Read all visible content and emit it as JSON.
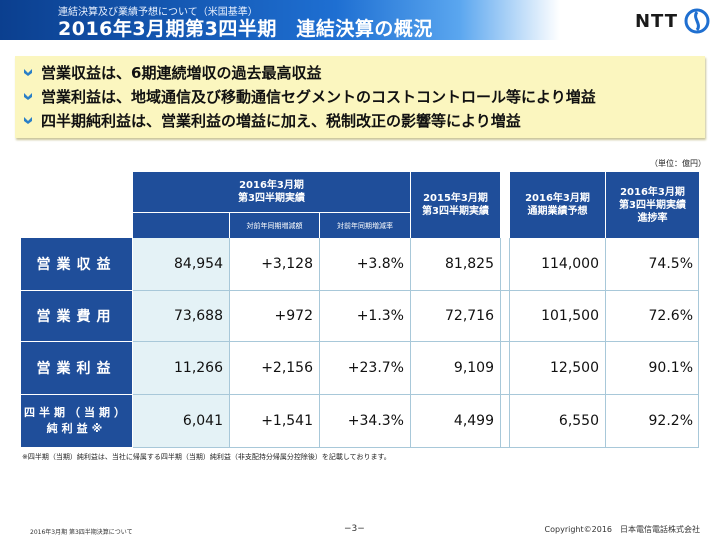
{
  "header": {
    "subtitle": "連結決算及び業績予想について（米国基準）",
    "title": "2016年3月期第3四半期　連結決算の概況",
    "logo_text": "NTT"
  },
  "summary": {
    "items": [
      "営業収益は、6期連続増収の過去最高収益",
      "営業利益は、地域通信及び移動通信セグメントのコストコントロール等により増益",
      "四半期純利益は、営業利益の増益に加え、税制改正の影響等により増益"
    ]
  },
  "unit": "（単位：億円）",
  "table": {
    "group_header": "2016年3月期\n第3四半期実績",
    "sub_headers": [
      "対前年同期増減額",
      "対前年同期増減率"
    ],
    "col_prev": "2015年3月期\n第3四半期実績",
    "col_forecast": "2016年3月期\n通期業績予想",
    "col_progress": "2016年3月期\n第3四半期実績\n進捗率",
    "rows": [
      {
        "label": "営業収益",
        "actual": "84,954",
        "diff": "+3,128",
        "rate": "+3.8%",
        "prev": "81,825",
        "forecast": "114,000",
        "progress": "74.5%"
      },
      {
        "label": "営業費用",
        "actual": "73,688",
        "diff": "+972",
        "rate": "+1.3%",
        "prev": "72,716",
        "forecast": "101,500",
        "progress": "72.6%"
      },
      {
        "label": "営業利益",
        "actual": "11,266",
        "diff": "+2,156",
        "rate": "+23.7%",
        "prev": "9,109",
        "forecast": "12,500",
        "progress": "90.1%"
      },
      {
        "label": "四半期（当期）\n純利益※",
        "actual": "6,041",
        "diff": "+1,541",
        "rate": "+34.3%",
        "prev": "4,499",
        "forecast": "6,550",
        "progress": "92.2%"
      }
    ]
  },
  "note": "※四半期（当期）純利益は、当社に帰属する四半期（当期）純利益（非支配持分帰属分控除後）を記載しております。",
  "footer": {
    "left": "2016年3月期 第3四半期決算について",
    "page": "−3−",
    "right": "Copyright©2016　日本電信電話株式会社"
  },
  "colors": {
    "navy": "#1f4e9a",
    "light_row": "#e4f2f6",
    "summary_bg": "#fbf6bf",
    "bullet": "#2a7fc7"
  }
}
